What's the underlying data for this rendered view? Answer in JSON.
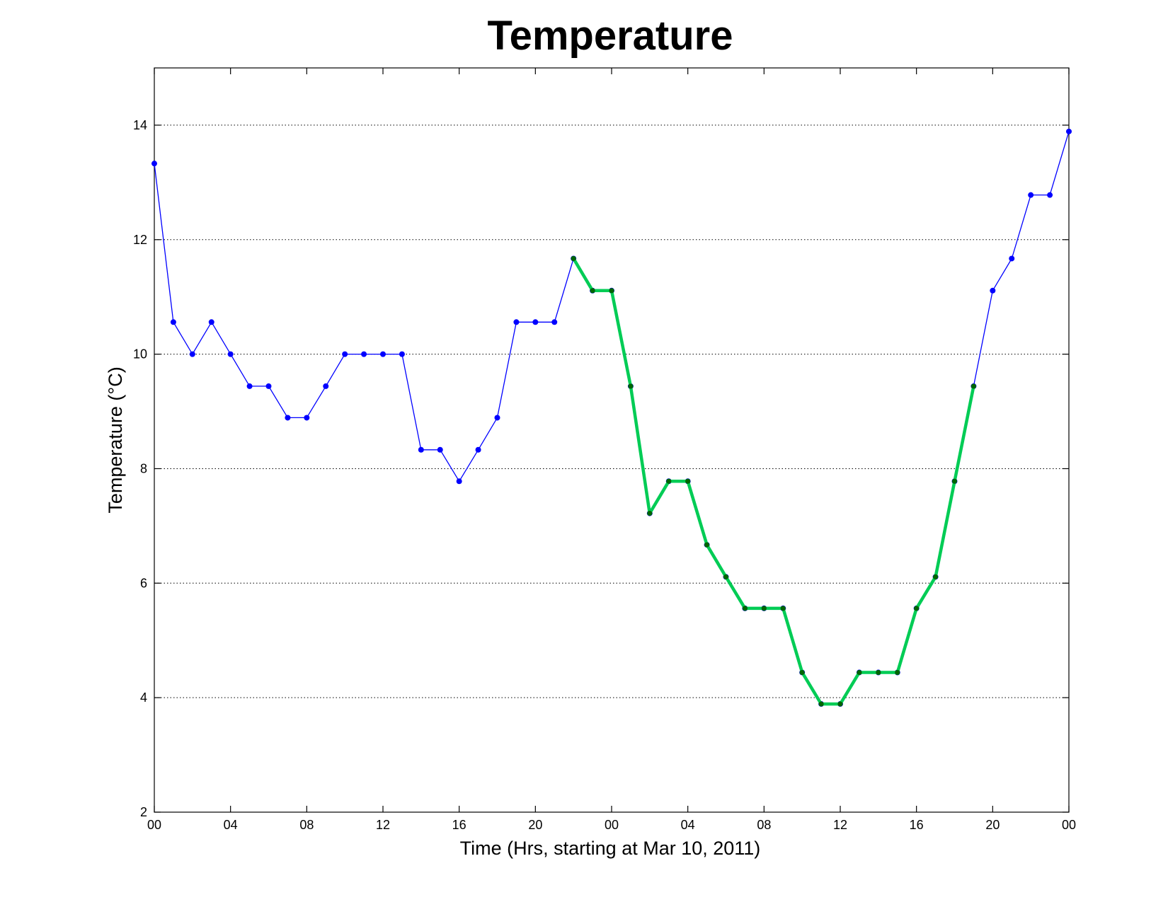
{
  "chart_data": {
    "type": "line",
    "title": "Temperature",
    "xlabel": "Time (Hrs, starting at Mar 10, 2011)",
    "ylabel": "Temperature (°C)",
    "x_tick_labels": [
      "00",
      "04",
      "08",
      "12",
      "16",
      "20",
      "00",
      "04",
      "08",
      "12",
      "16",
      "20",
      "00"
    ],
    "x_tick_hours": [
      0,
      4,
      8,
      12,
      16,
      20,
      24,
      28,
      32,
      36,
      40,
      44,
      48
    ],
    "xlim": [
      0,
      48
    ],
    "ylim": [
      2,
      15
    ],
    "y_ticks": [
      2,
      4,
      6,
      8,
      10,
      12,
      14
    ],
    "grid": "horizontal dotted",
    "legend": "none",
    "series": [
      {
        "color": "#0000ff",
        "hours": [
          0,
          1,
          2,
          3,
          4,
          5,
          6,
          7,
          8,
          9,
          10,
          11,
          12,
          13,
          14,
          15,
          16,
          17,
          18,
          19,
          20,
          21,
          22,
          23,
          24,
          25,
          26,
          27,
          28,
          29,
          30,
          31,
          32,
          33,
          34,
          35,
          36,
          37,
          38,
          39,
          40,
          41,
          42,
          43,
          44,
          45,
          46,
          47,
          48
        ],
        "values": [
          13.33,
          10.56,
          10.0,
          10.56,
          10.0,
          9.44,
          9.44,
          8.89,
          8.89,
          9.44,
          10.0,
          10.0,
          10.0,
          10.0,
          8.33,
          8.33,
          7.78,
          8.33,
          8.89,
          10.56,
          10.56,
          10.56,
          11.67,
          11.11,
          11.11,
          9.44,
          7.22,
          7.78,
          7.78,
          6.67,
          6.11,
          5.56,
          5.56,
          5.56,
          4.44,
          3.89,
          3.89,
          4.44,
          4.44,
          4.44,
          5.56,
          6.11,
          7.78,
          9.44,
          11.11,
          11.67,
          12.78,
          12.78,
          13.89
        ]
      },
      {
        "color": "#00cc55",
        "marker_color": "#006600",
        "hours": [
          22,
          23,
          24,
          25,
          26,
          27,
          28,
          29,
          30,
          31,
          32,
          33,
          34,
          35,
          36,
          37,
          38,
          39,
          40,
          41,
          42,
          43
        ],
        "values": [
          11.67,
          11.11,
          11.11,
          9.44,
          7.22,
          7.78,
          7.78,
          6.67,
          6.11,
          5.56,
          5.56,
          5.56,
          4.44,
          3.89,
          3.89,
          4.44,
          4.44,
          4.44,
          5.56,
          6.11,
          7.78,
          9.44
        ]
      }
    ]
  }
}
